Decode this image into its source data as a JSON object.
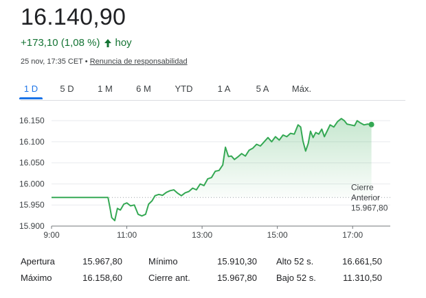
{
  "quote": {
    "price": "16.140,90",
    "change": "+173,10 (1,08 %)",
    "period": "hoy",
    "timestamp": "25 nov, 17:35 CET •",
    "disclaimer": "Renuncia de responsabilidad",
    "up_color": "#137333"
  },
  "tabs": [
    {
      "label": "1 D",
      "active": true
    },
    {
      "label": "5 D",
      "active": false
    },
    {
      "label": "1 M",
      "active": false
    },
    {
      "label": "6 M",
      "active": false
    },
    {
      "label": "YTD",
      "active": false
    },
    {
      "label": "1 A",
      "active": false
    },
    {
      "label": "5 A",
      "active": false
    },
    {
      "label": "Máx.",
      "active": false
    }
  ],
  "chart_data": {
    "type": "area",
    "x_range": [
      "9:00",
      "18:00"
    ],
    "ylim": [
      15900,
      16160
    ],
    "y_ticks": [
      "15.900",
      "15.950",
      "16.000",
      "16.050",
      "16.100",
      "16.150"
    ],
    "y_tick_values": [
      15900,
      15950,
      16000,
      16050,
      16100,
      16150
    ],
    "x_ticks": [
      "9:00",
      "11:00",
      "13:00",
      "15:00",
      "17:00"
    ],
    "x_tick_values": [
      9,
      11,
      13,
      15,
      17
    ],
    "previous_close": 15967.8,
    "previous_close_label_line1": "Cierre",
    "previous_close_label_line2": "Anterior",
    "previous_close_value": "15.967,80",
    "line_color": "#34a853",
    "fill_color": "#e6f4ea",
    "points": [
      [
        9.0,
        15967.8
      ],
      [
        10.5,
        15967.8
      ],
      [
        10.55,
        15945
      ],
      [
        10.6,
        15920
      ],
      [
        10.68,
        15913
      ],
      [
        10.75,
        15942
      ],
      [
        10.83,
        15938
      ],
      [
        10.92,
        15952
      ],
      [
        11.0,
        15955
      ],
      [
        11.1,
        15948
      ],
      [
        11.2,
        15950
      ],
      [
        11.3,
        15928
      ],
      [
        11.4,
        15924
      ],
      [
        11.5,
        15928
      ],
      [
        11.58,
        15952
      ],
      [
        11.67,
        15960
      ],
      [
        11.75,
        15972
      ],
      [
        11.85,
        15975
      ],
      [
        11.95,
        15973
      ],
      [
        12.05,
        15980
      ],
      [
        12.15,
        15984
      ],
      [
        12.25,
        15986
      ],
      [
        12.35,
        15978
      ],
      [
        12.45,
        15972
      ],
      [
        12.55,
        15979
      ],
      [
        12.65,
        15982
      ],
      [
        12.75,
        15990
      ],
      [
        12.85,
        15986
      ],
      [
        12.95,
        16000
      ],
      [
        13.05,
        15996
      ],
      [
        13.15,
        16012
      ],
      [
        13.25,
        16015
      ],
      [
        13.35,
        16030
      ],
      [
        13.45,
        16032
      ],
      [
        13.55,
        16045
      ],
      [
        13.62,
        16087
      ],
      [
        13.7,
        16065
      ],
      [
        13.78,
        16066
      ],
      [
        13.86,
        16058
      ],
      [
        13.95,
        16064
      ],
      [
        14.05,
        16072
      ],
      [
        14.15,
        16066
      ],
      [
        14.25,
        16080
      ],
      [
        14.35,
        16085
      ],
      [
        14.45,
        16094
      ],
      [
        14.55,
        16090
      ],
      [
        14.65,
        16100
      ],
      [
        14.75,
        16110
      ],
      [
        14.85,
        16100
      ],
      [
        14.95,
        16112
      ],
      [
        15.05,
        16104
      ],
      [
        15.15,
        16116
      ],
      [
        15.25,
        16112
      ],
      [
        15.35,
        16120
      ],
      [
        15.45,
        16118
      ],
      [
        15.55,
        16140
      ],
      [
        15.62,
        16135
      ],
      [
        15.68,
        16102
      ],
      [
        15.75,
        16078
      ],
      [
        15.82,
        16096
      ],
      [
        15.88,
        16125
      ],
      [
        15.95,
        16110
      ],
      [
        16.02,
        16122
      ],
      [
        16.1,
        16118
      ],
      [
        16.18,
        16130
      ],
      [
        16.25,
        16112
      ],
      [
        16.32,
        16125
      ],
      [
        16.4,
        16140
      ],
      [
        16.5,
        16135
      ],
      [
        16.6,
        16148
      ],
      [
        16.7,
        16155
      ],
      [
        16.78,
        16150
      ],
      [
        16.85,
        16142
      ],
      [
        16.95,
        16140
      ],
      [
        17.05,
        16138
      ],
      [
        17.12,
        16150
      ],
      [
        17.2,
        16145
      ],
      [
        17.3,
        16140
      ],
      [
        17.4,
        16142
      ],
      [
        17.5,
        16140.9
      ]
    ]
  },
  "stats": [
    {
      "label": "Apertura",
      "value": "15.967,80"
    },
    {
      "label": "Mínimo",
      "value": "15.910,30"
    },
    {
      "label": "Alto 52 s.",
      "value": "16.661,50"
    },
    {
      "label": "Máximo",
      "value": "16.158,60"
    },
    {
      "label": "Cierre ant.",
      "value": "15.967,80"
    },
    {
      "label": "Bajo 52 s.",
      "value": "11.310,50"
    }
  ]
}
